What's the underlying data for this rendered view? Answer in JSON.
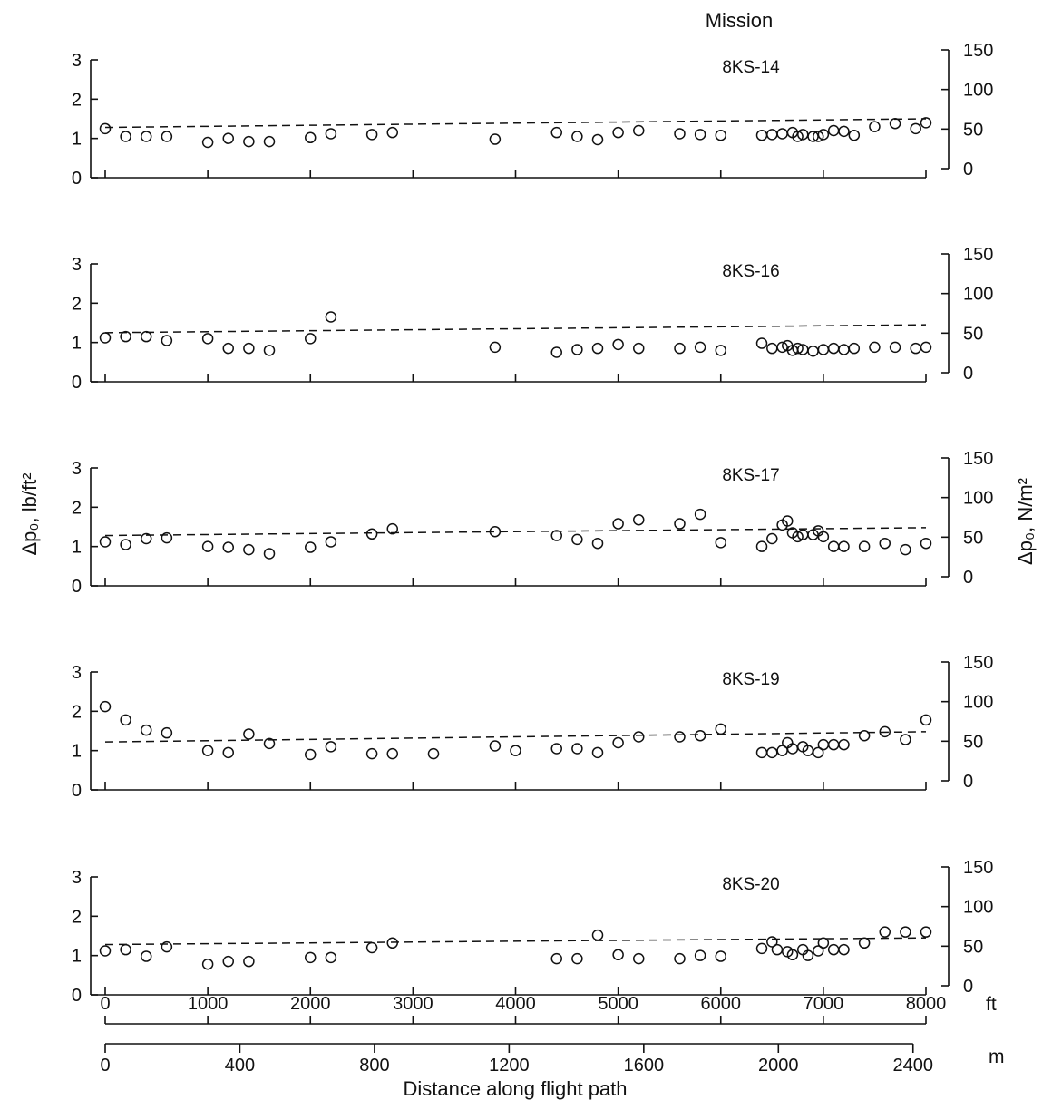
{
  "figure": {
    "header": "Mission",
    "xlabel": "Distance along flight path",
    "ylabel_left": "Δp₀, lb/ft²",
    "ylabel_right": "Δp₀, N/m²",
    "ft_unit": "ft",
    "m_unit": "m",
    "ft_ticks": [
      "0",
      "1000",
      "2000",
      "3000",
      "4000",
      "5000",
      "6000",
      "7000",
      "8000"
    ],
    "m_ticks": [
      "0",
      "400",
      "800",
      "1200",
      "1600",
      "2000",
      "2400"
    ],
    "left_ticks": [
      "0",
      "1",
      "2",
      "3"
    ],
    "right_ticks": [
      "0",
      "50",
      "100",
      "150"
    ]
  },
  "chart_data": [
    {
      "type": "scatter",
      "title": "8KS-14",
      "xlabel": "Distance along flight path",
      "ylabel": "Δp₀, lb/ft²",
      "xlim": [
        0,
        8000
      ],
      "ylim": [
        0,
        3
      ],
      "x": [
        0,
        200,
        400,
        600,
        1000,
        1200,
        1400,
        1600,
        2000,
        2200,
        2600,
        2800,
        3800,
        4400,
        4600,
        4800,
        5000,
        5200,
        5600,
        5800,
        6000,
        6400,
        6500,
        6600,
        6700,
        6750,
        6800,
        6900,
        6950,
        7000,
        7100,
        7200,
        7300,
        7500,
        7700,
        7900,
        8000
      ],
      "y": [
        1.25,
        1.05,
        1.05,
        1.05,
        0.9,
        1.0,
        0.92,
        0.92,
        1.02,
        1.12,
        1.1,
        1.15,
        0.98,
        1.15,
        1.05,
        0.97,
        1.15,
        1.2,
        1.12,
        1.1,
        1.08,
        1.08,
        1.1,
        1.12,
        1.15,
        1.05,
        1.1,
        1.05,
        1.05,
        1.1,
        1.2,
        1.18,
        1.08,
        1.3,
        1.38,
        1.25,
        1.4
      ],
      "trend": [
        [
          0,
          1.28
        ],
        [
          8000,
          1.5
        ]
      ]
    },
    {
      "type": "scatter",
      "title": "8KS-16",
      "xlabel": "Distance along flight path",
      "ylabel": "Δp₀, lb/ft²",
      "xlim": [
        0,
        8000
      ],
      "ylim": [
        0,
        3
      ],
      "x": [
        0,
        200,
        400,
        600,
        1000,
        1200,
        1400,
        1600,
        2000,
        2200,
        3800,
        4400,
        4600,
        4800,
        5000,
        5200,
        5600,
        5800,
        6000,
        6400,
        6500,
        6600,
        6650,
        6700,
        6750,
        6800,
        6900,
        7000,
        7100,
        7200,
        7300,
        7500,
        7700,
        7900,
        8000
      ],
      "y": [
        1.12,
        1.15,
        1.15,
        1.05,
        1.1,
        0.85,
        0.85,
        0.8,
        1.1,
        1.65,
        0.88,
        0.75,
        0.82,
        0.85,
        0.95,
        0.85,
        0.85,
        0.88,
        0.8,
        0.98,
        0.85,
        0.88,
        0.92,
        0.8,
        0.85,
        0.82,
        0.78,
        0.82,
        0.85,
        0.82,
        0.85,
        0.88,
        0.88,
        0.85,
        0.88
      ],
      "trend": [
        [
          0,
          1.25
        ],
        [
          8000,
          1.45
        ]
      ]
    },
    {
      "type": "scatter",
      "title": "8KS-17",
      "xlabel": "Distance along flight path",
      "ylabel": "Δp₀, lb/ft²",
      "xlim": [
        0,
        8000
      ],
      "ylim": [
        0,
        3
      ],
      "x": [
        0,
        200,
        400,
        600,
        1000,
        1200,
        1400,
        1600,
        2000,
        2200,
        2600,
        2800,
        3800,
        4400,
        4600,
        4800,
        5000,
        5200,
        5600,
        5800,
        6000,
        6400,
        6500,
        6600,
        6650,
        6700,
        6750,
        6800,
        6900,
        6950,
        7000,
        7100,
        7200,
        7400,
        7600,
        7800,
        8000
      ],
      "y": [
        1.12,
        1.05,
        1.2,
        1.22,
        1.0,
        0.98,
        0.92,
        0.82,
        0.98,
        1.12,
        1.32,
        1.45,
        1.38,
        1.28,
        1.18,
        1.08,
        1.58,
        1.68,
        1.58,
        1.82,
        1.1,
        1.0,
        1.2,
        1.55,
        1.65,
        1.35,
        1.25,
        1.3,
        1.3,
        1.4,
        1.25,
        1.0,
        1.0,
        1.0,
        1.08,
        0.92,
        1.08
      ],
      "trend": [
        [
          0,
          1.28
        ],
        [
          8000,
          1.48
        ]
      ]
    },
    {
      "type": "scatter",
      "title": "8KS-19",
      "xlabel": "Distance along flight path",
      "ylabel": "Δp₀, lb/ft²",
      "xlim": [
        0,
        8000
      ],
      "ylim": [
        0,
        3
      ],
      "x": [
        0,
        200,
        400,
        600,
        1000,
        1200,
        1400,
        1600,
        2000,
        2200,
        2600,
        2800,
        3200,
        3800,
        4000,
        4400,
        4600,
        4800,
        5000,
        5200,
        5600,
        5800,
        6000,
        6400,
        6500,
        6600,
        6650,
        6700,
        6800,
        6850,
        6950,
        7000,
        7100,
        7200,
        7400,
        7600,
        7800,
        8000
      ],
      "y": [
        2.12,
        1.78,
        1.52,
        1.45,
        1.0,
        0.95,
        1.42,
        1.18,
        0.9,
        1.1,
        0.92,
        0.92,
        0.92,
        1.12,
        1.0,
        1.05,
        1.05,
        0.95,
        1.2,
        1.35,
        1.35,
        1.38,
        1.55,
        0.95,
        0.95,
        1.0,
        1.2,
        1.05,
        1.1,
        1.0,
        0.95,
        1.15,
        1.15,
        1.15,
        1.38,
        1.48,
        1.28,
        1.78
      ],
      "trend": [
        [
          0,
          1.22
        ],
        [
          8000,
          1.48
        ]
      ]
    },
    {
      "type": "scatter",
      "title": "8KS-20",
      "xlabel": "Distance along flight path",
      "ylabel": "Δp₀, lb/ft²",
      "xlim": [
        0,
        8000
      ],
      "ylim": [
        0,
        3
      ],
      "x": [
        0,
        200,
        400,
        600,
        1000,
        1200,
        1400,
        2000,
        2200,
        2600,
        2800,
        4400,
        4600,
        4800,
        5000,
        5200,
        5600,
        5800,
        6000,
        6400,
        6500,
        6550,
        6650,
        6700,
        6800,
        6850,
        6950,
        7000,
        7100,
        7200,
        7400,
        7600,
        7800,
        8000
      ],
      "y": [
        1.12,
        1.15,
        0.98,
        1.22,
        0.78,
        0.85,
        0.85,
        0.95,
        0.95,
        1.2,
        1.32,
        0.92,
        0.92,
        1.52,
        1.02,
        0.92,
        0.92,
        1.0,
        0.98,
        1.18,
        1.35,
        1.15,
        1.1,
        1.02,
        1.15,
        1.0,
        1.12,
        1.32,
        1.15,
        1.15,
        1.32,
        1.6,
        1.6,
        1.6
      ],
      "trend": [
        [
          0,
          1.28
        ],
        [
          8000,
          1.45
        ]
      ]
    }
  ]
}
